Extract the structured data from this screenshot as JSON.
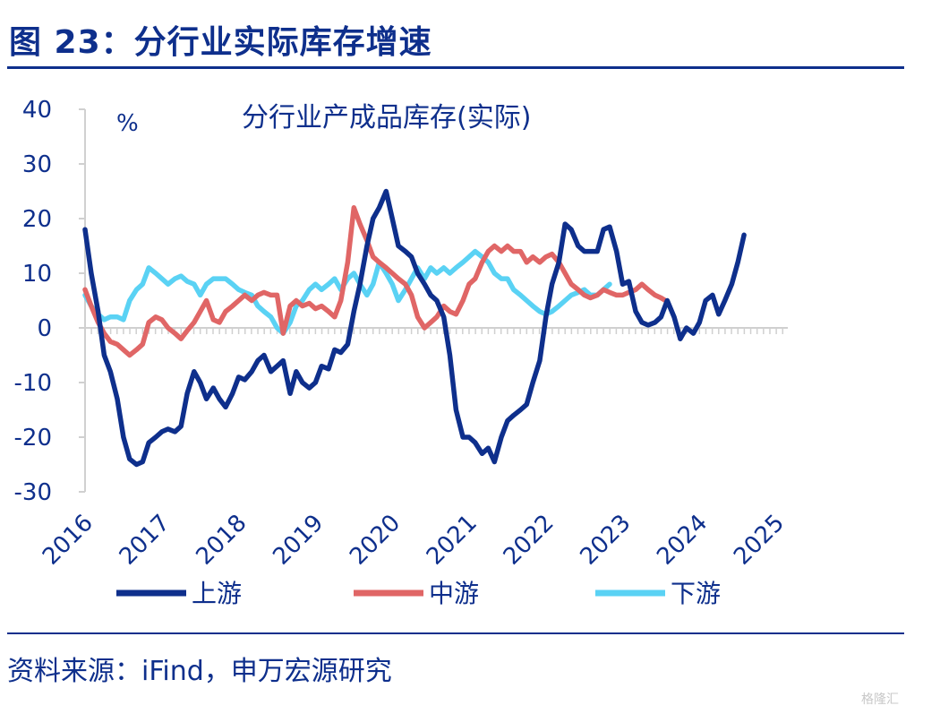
{
  "header": {
    "title": "图 23：分行业实际库存增速"
  },
  "footer": {
    "source": "资料来源：iFind，申万宏源研究",
    "watermark": "格隆汇"
  },
  "colors": {
    "brand": "#0e2f8c",
    "upstream": "#0e2f8c",
    "midstream": "#e06666",
    "downstream": "#5ad2f4"
  },
  "chart_data": {
    "type": "line",
    "title": "分行业产成品库存(实际)",
    "ylabel": "%",
    "ylim": [
      -30,
      40
    ],
    "yticks": [
      -30,
      -20,
      -10,
      0,
      10,
      20,
      30,
      40
    ],
    "xlim": [
      2016.0,
      2025.15
    ],
    "xticks": [
      "2016",
      "2017",
      "2018",
      "2019",
      "2020",
      "2021",
      "2022",
      "2023",
      "2024",
      "2025"
    ],
    "legend_position": "bottom",
    "series": [
      {
        "name": "上游",
        "color": "#0e2f8c",
        "points": [
          [
            2016.0,
            18
          ],
          [
            2016.08,
            10
          ],
          [
            2016.17,
            3
          ],
          [
            2016.25,
            -5
          ],
          [
            2016.33,
            -8
          ],
          [
            2016.42,
            -13
          ],
          [
            2016.5,
            -20
          ],
          [
            2016.58,
            -24
          ],
          [
            2016.67,
            -25
          ],
          [
            2016.75,
            -24.5
          ],
          [
            2016.83,
            -21
          ],
          [
            2016.92,
            -20
          ],
          [
            2017.0,
            -19
          ],
          [
            2017.08,
            -18.5
          ],
          [
            2017.17,
            -19
          ],
          [
            2017.25,
            -18
          ],
          [
            2017.33,
            -12
          ],
          [
            2017.42,
            -8
          ],
          [
            2017.5,
            -10
          ],
          [
            2017.58,
            -13
          ],
          [
            2017.67,
            -11
          ],
          [
            2017.75,
            -13
          ],
          [
            2017.83,
            -14.5
          ],
          [
            2017.92,
            -12
          ],
          [
            2018.0,
            -9
          ],
          [
            2018.08,
            -9.5
          ],
          [
            2018.17,
            -8
          ],
          [
            2018.25,
            -6
          ],
          [
            2018.33,
            -5
          ],
          [
            2018.42,
            -8
          ],
          [
            2018.5,
            -7
          ],
          [
            2018.58,
            -6
          ],
          [
            2018.67,
            -12
          ],
          [
            2018.75,
            -8
          ],
          [
            2018.83,
            -10
          ],
          [
            2018.92,
            -11
          ],
          [
            2019.0,
            -10
          ],
          [
            2019.08,
            -7
          ],
          [
            2019.17,
            -7.5
          ],
          [
            2019.25,
            -4
          ],
          [
            2019.33,
            -4.5
          ],
          [
            2019.42,
            -3
          ],
          [
            2019.5,
            3
          ],
          [
            2019.58,
            8
          ],
          [
            2019.67,
            15
          ],
          [
            2019.75,
            20
          ],
          [
            2019.83,
            22
          ],
          [
            2019.92,
            25
          ],
          [
            2020.0,
            20
          ],
          [
            2020.08,
            15
          ],
          [
            2020.17,
            14
          ],
          [
            2020.25,
            13
          ],
          [
            2020.33,
            10
          ],
          [
            2020.42,
            8
          ],
          [
            2020.5,
            6
          ],
          [
            2020.58,
            5
          ],
          [
            2020.67,
            2
          ],
          [
            2020.75,
            -5
          ],
          [
            2020.83,
            -15
          ],
          [
            2020.92,
            -20
          ],
          [
            2021.0,
            -20
          ],
          [
            2021.08,
            -21
          ],
          [
            2021.17,
            -23
          ],
          [
            2021.25,
            -22
          ],
          [
            2021.33,
            -24.5
          ],
          [
            2021.42,
            -20
          ],
          [
            2021.5,
            -17
          ],
          [
            2021.58,
            -16
          ],
          [
            2021.67,
            -15
          ],
          [
            2021.75,
            -14
          ],
          [
            2021.83,
            -10
          ],
          [
            2021.92,
            -6
          ],
          [
            2022.0,
            2
          ],
          [
            2022.08,
            8
          ],
          [
            2022.17,
            12
          ],
          [
            2022.25,
            19
          ],
          [
            2022.33,
            18
          ],
          [
            2022.42,
            15
          ],
          [
            2022.5,
            14
          ],
          [
            2022.58,
            14
          ],
          [
            2022.67,
            14
          ],
          [
            2022.75,
            18
          ],
          [
            2022.83,
            18.5
          ],
          [
            2022.92,
            14
          ],
          [
            2023.0,
            8
          ],
          [
            2023.08,
            8.5
          ],
          [
            2023.17,
            3
          ],
          [
            2023.25,
            1
          ],
          [
            2023.33,
            0.5
          ],
          [
            2023.42,
            1
          ],
          [
            2023.5,
            2
          ],
          [
            2023.58,
            5
          ],
          [
            2023.67,
            2
          ],
          [
            2023.75,
            -2
          ],
          [
            2023.83,
            0
          ],
          [
            2023.92,
            -1
          ],
          [
            2024.0,
            1
          ],
          [
            2024.08,
            5
          ],
          [
            2024.17,
            6
          ],
          [
            2024.25,
            2.5
          ],
          [
            2024.33,
            5
          ],
          [
            2024.42,
            8
          ],
          [
            2024.5,
            12
          ],
          [
            2024.58,
            17
          ]
        ]
      },
      {
        "name": "中游",
        "color": "#e06666",
        "points": [
          [
            2016.0,
            7
          ],
          [
            2016.08,
            4
          ],
          [
            2016.17,
            1
          ],
          [
            2016.25,
            -1
          ],
          [
            2016.33,
            -2.5
          ],
          [
            2016.42,
            -3
          ],
          [
            2016.5,
            -4
          ],
          [
            2016.58,
            -5
          ],
          [
            2016.67,
            -4
          ],
          [
            2016.75,
            -3
          ],
          [
            2016.83,
            1
          ],
          [
            2016.92,
            2
          ],
          [
            2017.0,
            1.5
          ],
          [
            2017.08,
            0
          ],
          [
            2017.17,
            -1
          ],
          [
            2017.25,
            -2
          ],
          [
            2017.33,
            -0.5
          ],
          [
            2017.42,
            1
          ],
          [
            2017.5,
            3
          ],
          [
            2017.58,
            5
          ],
          [
            2017.67,
            1.5
          ],
          [
            2017.75,
            1
          ],
          [
            2017.83,
            3
          ],
          [
            2017.92,
            4
          ],
          [
            2018.0,
            5
          ],
          [
            2018.08,
            6
          ],
          [
            2018.17,
            5
          ],
          [
            2018.25,
            6
          ],
          [
            2018.33,
            6.5
          ],
          [
            2018.42,
            6
          ],
          [
            2018.5,
            6
          ],
          [
            2018.58,
            -1
          ],
          [
            2018.67,
            4
          ],
          [
            2018.75,
            5
          ],
          [
            2018.83,
            4
          ],
          [
            2018.92,
            4.5
          ],
          [
            2019.0,
            3.5
          ],
          [
            2019.08,
            4
          ],
          [
            2019.17,
            3
          ],
          [
            2019.25,
            2
          ],
          [
            2019.33,
            5
          ],
          [
            2019.42,
            12
          ],
          [
            2019.5,
            22
          ],
          [
            2019.58,
            19
          ],
          [
            2019.67,
            16
          ],
          [
            2019.75,
            13
          ],
          [
            2019.83,
            12
          ],
          [
            2019.92,
            11
          ],
          [
            2020.0,
            10
          ],
          [
            2020.08,
            9
          ],
          [
            2020.17,
            8
          ],
          [
            2020.25,
            6
          ],
          [
            2020.33,
            2
          ],
          [
            2020.42,
            0
          ],
          [
            2020.5,
            1
          ],
          [
            2020.58,
            2
          ],
          [
            2020.67,
            4
          ],
          [
            2020.75,
            3
          ],
          [
            2020.83,
            2.5
          ],
          [
            2020.92,
            5
          ],
          [
            2021.0,
            8
          ],
          [
            2021.08,
            9
          ],
          [
            2021.17,
            12
          ],
          [
            2021.25,
            14
          ],
          [
            2021.33,
            15
          ],
          [
            2021.42,
            14
          ],
          [
            2021.5,
            15
          ],
          [
            2021.58,
            14
          ],
          [
            2021.67,
            14
          ],
          [
            2021.75,
            12
          ],
          [
            2021.83,
            13
          ],
          [
            2021.92,
            12
          ],
          [
            2022.0,
            13
          ],
          [
            2022.08,
            13.5
          ],
          [
            2022.17,
            12
          ],
          [
            2022.25,
            10
          ],
          [
            2022.33,
            8
          ],
          [
            2022.42,
            7
          ],
          [
            2022.5,
            6
          ],
          [
            2022.58,
            5.5
          ],
          [
            2022.67,
            6
          ],
          [
            2022.75,
            7
          ],
          [
            2022.83,
            6.5
          ],
          [
            2022.92,
            6
          ],
          [
            2023.0,
            6
          ],
          [
            2023.08,
            6.5
          ],
          [
            2023.17,
            7
          ],
          [
            2023.25,
            8
          ],
          [
            2023.33,
            7
          ],
          [
            2023.42,
            6
          ],
          [
            2023.5,
            5.5
          ],
          [
            2023.58,
            4.8
          ]
        ]
      },
      {
        "name": "下游",
        "color": "#5ad2f4",
        "points": [
          [
            2016.0,
            6
          ],
          [
            2016.08,
            4
          ],
          [
            2016.17,
            2.5
          ],
          [
            2016.25,
            1.5
          ],
          [
            2016.33,
            2
          ],
          [
            2016.42,
            2
          ],
          [
            2016.5,
            1.5
          ],
          [
            2016.58,
            5
          ],
          [
            2016.67,
            7
          ],
          [
            2016.75,
            8
          ],
          [
            2016.83,
            11
          ],
          [
            2016.92,
            10
          ],
          [
            2017.0,
            9
          ],
          [
            2017.08,
            8
          ],
          [
            2017.17,
            9
          ],
          [
            2017.25,
            9.5
          ],
          [
            2017.33,
            8.5
          ],
          [
            2017.42,
            8
          ],
          [
            2017.5,
            6
          ],
          [
            2017.58,
            8
          ],
          [
            2017.67,
            9
          ],
          [
            2017.75,
            9
          ],
          [
            2017.83,
            9
          ],
          [
            2017.92,
            8
          ],
          [
            2018.0,
            7
          ],
          [
            2018.08,
            6.5
          ],
          [
            2018.17,
            6
          ],
          [
            2018.25,
            4
          ],
          [
            2018.33,
            3
          ],
          [
            2018.42,
            2
          ],
          [
            2018.5,
            0
          ],
          [
            2018.58,
            -1
          ],
          [
            2018.67,
            1
          ],
          [
            2018.75,
            4
          ],
          [
            2018.83,
            5
          ],
          [
            2018.92,
            7
          ],
          [
            2019.0,
            8
          ],
          [
            2019.08,
            7
          ],
          [
            2019.17,
            8
          ],
          [
            2019.25,
            9
          ],
          [
            2019.33,
            7
          ],
          [
            2019.42,
            9
          ],
          [
            2019.5,
            10
          ],
          [
            2019.58,
            8
          ],
          [
            2019.67,
            6
          ],
          [
            2019.75,
            8
          ],
          [
            2019.83,
            12
          ],
          [
            2019.92,
            10
          ],
          [
            2020.0,
            8
          ],
          [
            2020.08,
            5
          ],
          [
            2020.17,
            7
          ],
          [
            2020.25,
            9
          ],
          [
            2020.33,
            11
          ],
          [
            2020.42,
            9
          ],
          [
            2020.5,
            11
          ],
          [
            2020.58,
            10
          ],
          [
            2020.67,
            11
          ],
          [
            2020.75,
            10
          ],
          [
            2020.83,
            11
          ],
          [
            2020.92,
            12
          ],
          [
            2021.0,
            13
          ],
          [
            2021.08,
            14
          ],
          [
            2021.17,
            13
          ],
          [
            2021.25,
            12
          ],
          [
            2021.33,
            10
          ],
          [
            2021.42,
            9
          ],
          [
            2021.5,
            9
          ],
          [
            2021.58,
            7
          ],
          [
            2021.67,
            6
          ],
          [
            2021.75,
            5
          ],
          [
            2021.83,
            4
          ],
          [
            2021.92,
            3
          ],
          [
            2022.0,
            2.5
          ],
          [
            2022.08,
            3
          ],
          [
            2022.17,
            4
          ],
          [
            2022.25,
            5
          ],
          [
            2022.33,
            6
          ],
          [
            2022.42,
            6.5
          ],
          [
            2022.5,
            7
          ],
          [
            2022.58,
            6
          ],
          [
            2022.67,
            6
          ],
          [
            2022.75,
            7
          ],
          [
            2022.83,
            8
          ]
        ]
      }
    ]
  }
}
